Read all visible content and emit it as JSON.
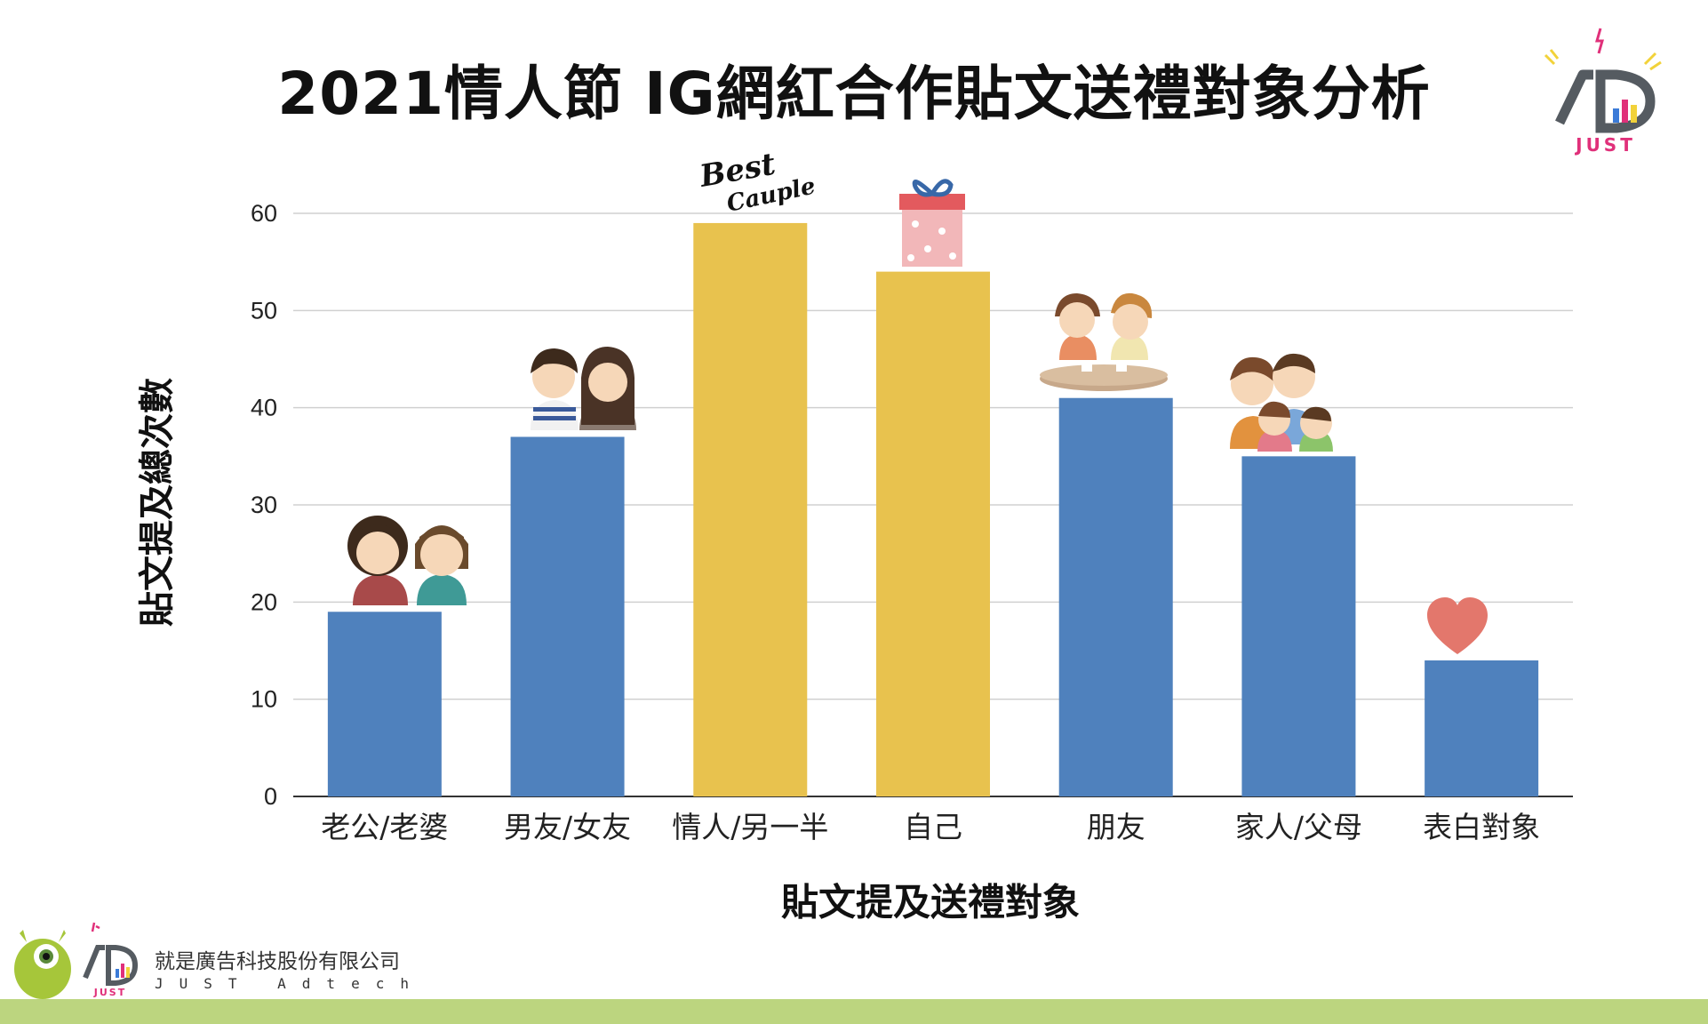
{
  "chart_data": {
    "type": "bar",
    "title": "2021情人節 IG網紅合作貼文送禮對象分析",
    "xlabel": "貼文提及送禮對象",
    "ylabel": "貼文提及總次數",
    "categories": [
      "老公/老婆",
      "男友/女友",
      "情人/另一半",
      "自己",
      "朋友",
      "家人/父母",
      "表白對象"
    ],
    "values": [
      19,
      37,
      59,
      54,
      41,
      35,
      14
    ],
    "highlighted": [
      false,
      false,
      true,
      true,
      false,
      false,
      false
    ],
    "ylim": [
      0,
      60
    ],
    "yticks": [
      0,
      10,
      20,
      30,
      40,
      50,
      60
    ],
    "grid": true,
    "colors": {
      "bar": "#4f81bd",
      "highlight": "#e8c24e",
      "grid": "#d0d0d0"
    },
    "annotations": [
      "Best",
      "Cauple"
    ]
  },
  "logo": {
    "top_text": "JUST",
    "icon": "ad-just-logo-icon"
  },
  "footer": {
    "company": "就是廣告科技股份有限公司",
    "company_en": "JUST Adtech",
    "mascot_icon": "green-monster-mascot-icon"
  }
}
